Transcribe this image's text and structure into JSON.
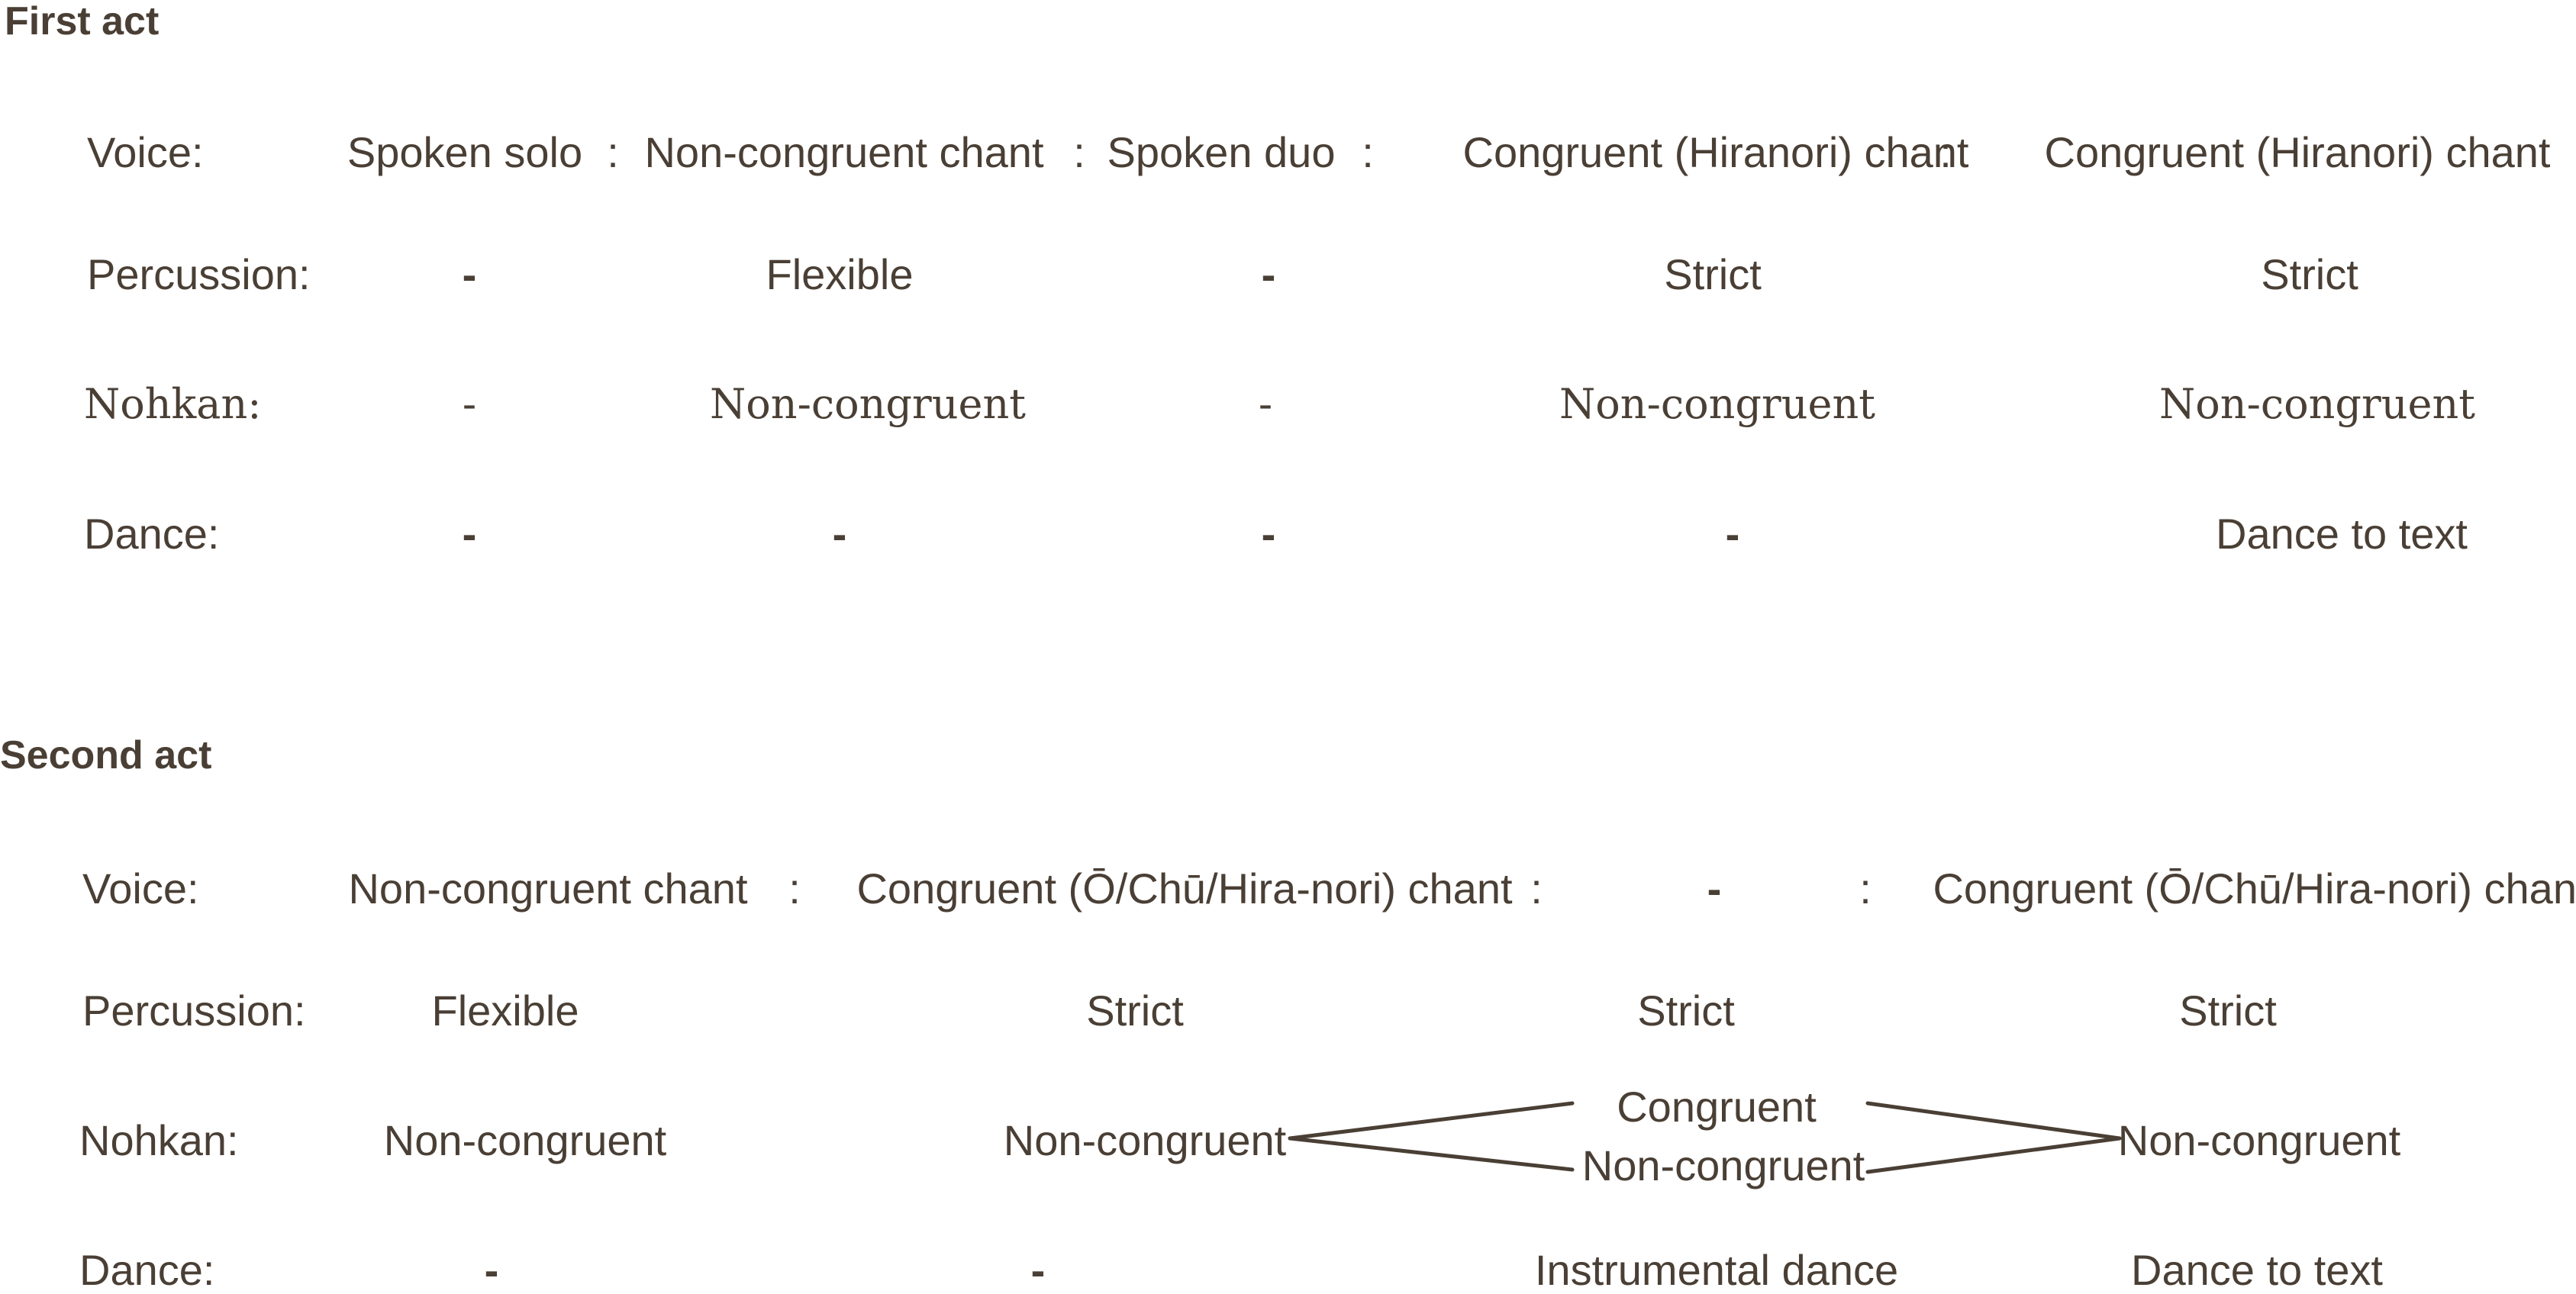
{
  "colors": {
    "text": "#4a3f35",
    "line": "#4a3f35",
    "background": "#ffffff"
  },
  "first_act": {
    "title": "First act",
    "voice": {
      "label": "Voice:",
      "cells": [
        "Spoken solo",
        "Non-congruent chant",
        "Spoken duo",
        "Congruent (Hiranori) chant",
        "Congruent (Hiranori) chant"
      ],
      "separator": ":"
    },
    "percussion": {
      "label": "Percussion:",
      "cells": [
        "-",
        "Flexible",
        "-",
        "Strict",
        "Strict"
      ]
    },
    "nohkan": {
      "label": "Nohkan:",
      "cells": [
        "-",
        "Non-congruent",
        "-",
        "Non-congruent",
        "Non-congruent"
      ]
    },
    "dance": {
      "label": "Dance:",
      "cells": [
        "-",
        "-",
        "-",
        "-",
        "Dance to text"
      ]
    }
  },
  "second_act": {
    "title": "Second act",
    "voice": {
      "label": "Voice:",
      "cells": [
        "Non-congruent chant",
        "Congruent (Ō/Chū/Hira-nori) chant",
        "-",
        "Congruent (Ō/Chū/Hira-nori) chant"
      ],
      "separator": ":"
    },
    "percussion": {
      "label": "Percussion:",
      "cells": [
        "Flexible",
        "Strict",
        "Strict",
        "Strict"
      ]
    },
    "nohkan": {
      "label": "Nohkan:",
      "cells": [
        "Non-congruent",
        "Non-congruent",
        "Non-congruent",
        "Non-congruent"
      ],
      "branch_upper": "Congruent"
    },
    "dance": {
      "label": "Dance:",
      "cells": [
        "-",
        "-",
        "Instrumental dance",
        "Dance to text"
      ]
    }
  }
}
